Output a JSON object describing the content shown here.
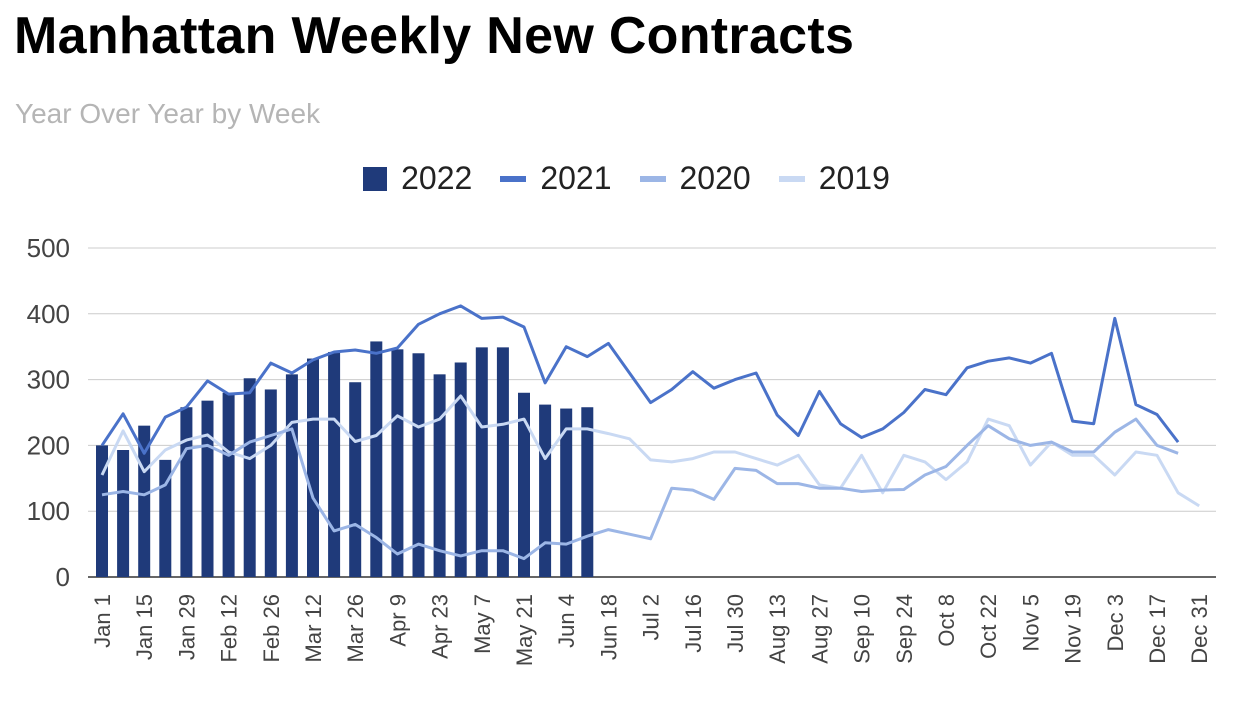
{
  "title": "Manhattan Weekly New Contracts",
  "subtitle": "Year Over Year by Week",
  "colors": {
    "2022": "#1f3a7a",
    "2021": "#4a72c9",
    "2020": "#9cb6e6",
    "2019": "#c9d9f3"
  },
  "chart_data": {
    "type": "bar",
    "title": "Manhattan Weekly New Contracts",
    "subtitle": "Year Over Year by Week",
    "xlabel": "",
    "ylabel": "",
    "ylim": [
      0,
      500
    ],
    "yticks": [
      0,
      100,
      200,
      300,
      400,
      500
    ],
    "grid": true,
    "legend_position": "top",
    "xtick_labels": [
      "Jan 1",
      "Jan 15",
      "Jan 29",
      "Feb 12",
      "Feb 26",
      "Mar 12",
      "Mar 26",
      "Apr 9",
      "Apr 23",
      "May 7",
      "May 21",
      "Jun 4",
      "Jun 18",
      "Jul 2",
      "Jul 16",
      "Jul 30",
      "Aug 13",
      "Aug 27",
      "Sep 10",
      "Sep 24",
      "Oct 8",
      "Oct 22",
      "Nov 5",
      "Nov 19",
      "Dec 3",
      "Dec 17",
      "Dec 31"
    ],
    "series": [
      {
        "name": "2022",
        "kind": "bar",
        "values": [
          200,
          193,
          230,
          178,
          258,
          268,
          280,
          302,
          285,
          308,
          332,
          342,
          296,
          358,
          346,
          340,
          308,
          326,
          349,
          349,
          280,
          262,
          256,
          258
        ]
      },
      {
        "name": "2021",
        "kind": "line",
        "values": [
          200,
          248,
          188,
          243,
          258,
          298,
          278,
          280,
          325,
          310,
          330,
          342,
          345,
          340,
          348,
          384,
          400,
          412,
          393,
          395,
          380,
          295,
          350,
          335,
          355,
          310,
          265,
          285,
          312,
          287,
          300,
          310,
          246,
          215,
          282,
          233,
          212,
          225,
          250,
          285,
          277,
          318,
          328,
          333,
          325,
          340,
          237,
          233,
          393,
          262,
          247,
          205
        ]
      },
      {
        "name": "2020",
        "kind": "line",
        "values": [
          125,
          130,
          125,
          140,
          195,
          200,
          185,
          205,
          215,
          225,
          120,
          70,
          80,
          60,
          35,
          50,
          40,
          32,
          40,
          40,
          28,
          52,
          50,
          62,
          72,
          65,
          58,
          135,
          132,
          118,
          165,
          162,
          142,
          142,
          135,
          135,
          130,
          132,
          133,
          155,
          168,
          200,
          230,
          210,
          200,
          205,
          190,
          190,
          220,
          240,
          200,
          188
        ]
      },
      {
        "name": "2019",
        "kind": "line",
        "values": [
          155,
          222,
          160,
          193,
          208,
          216,
          190,
          180,
          200,
          235,
          240,
          240,
          206,
          215,
          245,
          228,
          240,
          275,
          228,
          232,
          240,
          180,
          225,
          225,
          218,
          210,
          178,
          175,
          180,
          190,
          190,
          180,
          170,
          185,
          140,
          135,
          185,
          128,
          185,
          175,
          148,
          175,
          240,
          230,
          170,
          205,
          185,
          185,
          155,
          190,
          185,
          128,
          108
        ]
      }
    ]
  }
}
